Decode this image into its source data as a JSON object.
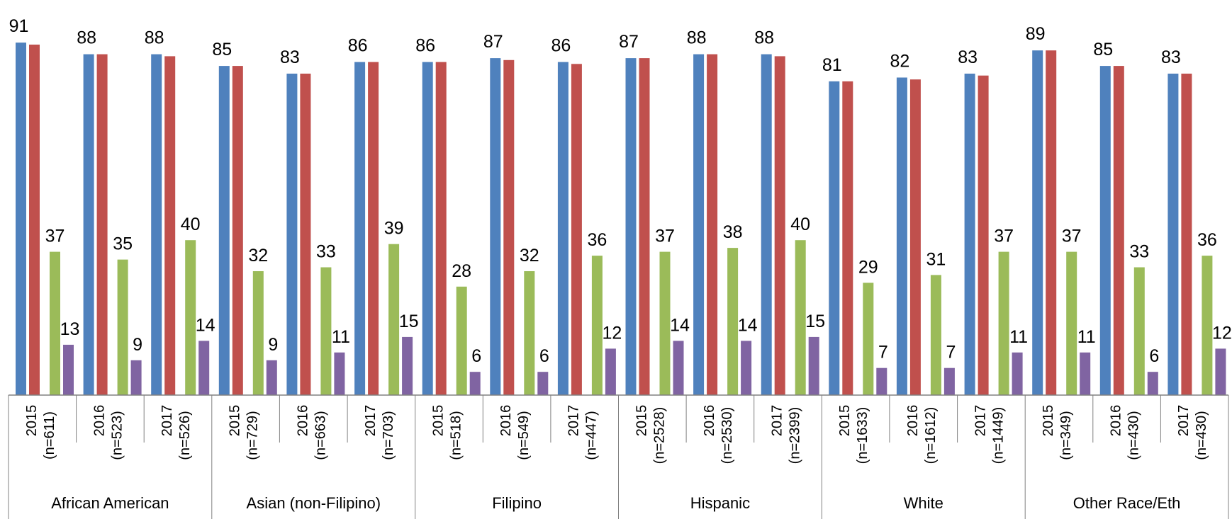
{
  "chart_data": {
    "type": "bar",
    "ylim": [
      0,
      100
    ],
    "grid": false,
    "legend": "none",
    "colors": [
      "#4F81BD",
      "#C0504D",
      "#9BBB59",
      "#8064A2"
    ],
    "groups": [
      "African American",
      "Asian (non-Filipino)",
      "Filipino",
      "Hispanic",
      "White",
      "Other Race/Eth"
    ],
    "categories": [
      {
        "year": "2015",
        "n": "(n=611)",
        "group": 0
      },
      {
        "year": "2016",
        "n": "(n=523)",
        "group": 0
      },
      {
        "year": "2017",
        "n": "(n=526)",
        "group": 0
      },
      {
        "year": "2015",
        "n": "(n=729)",
        "group": 1
      },
      {
        "year": "2016",
        "n": "(n=663)",
        "group": 1
      },
      {
        "year": "2017",
        "n": "(n=703)",
        "group": 1
      },
      {
        "year": "2015",
        "n": "(n=518)",
        "group": 2
      },
      {
        "year": "2016",
        "n": "(n=549)",
        "group": 2
      },
      {
        "year": "2017",
        "n": "(n=447)",
        "group": 2
      },
      {
        "year": "2015",
        "n": "(n=2528)",
        "group": 3
      },
      {
        "year": "2016",
        "n": "(n=2530)",
        "group": 3
      },
      {
        "year": "2017",
        "n": "(n=2399)",
        "group": 3
      },
      {
        "year": "2015",
        "n": "(n=1633)",
        "group": 4
      },
      {
        "year": "2016",
        "n": "(n=1612)",
        "group": 4
      },
      {
        "year": "2017",
        "n": "(n=1449)",
        "group": 4
      },
      {
        "year": "2015",
        "n": "(n=349)",
        "group": 5
      },
      {
        "year": "2016",
        "n": "(n=430)",
        "group": 5
      },
      {
        "year": "2017",
        "n": "(n=430)",
        "group": 5
      }
    ],
    "series": [
      {
        "values": [
          91,
          88,
          88,
          85,
          83,
          86,
          86,
          87,
          86,
          87,
          88,
          88,
          81,
          82,
          83,
          89,
          85,
          83
        ],
        "labeled": true
      },
      {
        "values": [
          90.5,
          88,
          87.5,
          85,
          83,
          86,
          86,
          86.5,
          85.5,
          87,
          88,
          87.5,
          81,
          81.5,
          82.5,
          89,
          85,
          83
        ],
        "labeled": false
      },
      {
        "values": [
          37,
          35,
          40,
          32,
          33,
          39,
          28,
          32,
          36,
          37,
          38,
          40,
          29,
          31,
          37,
          37,
          33,
          36
        ],
        "labeled": true
      },
      {
        "values": [
          13,
          9,
          14,
          9,
          11,
          15,
          6,
          6,
          12,
          14,
          14,
          15,
          7,
          7,
          11,
          11,
          6,
          12
        ],
        "labeled": true
      }
    ]
  }
}
